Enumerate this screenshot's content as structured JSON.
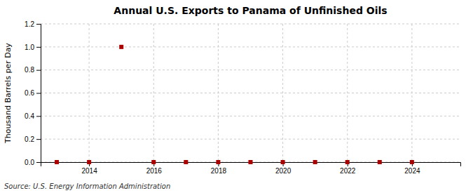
{
  "chart_data": {
    "type": "scatter",
    "title": "Annual U.S. Exports to Panama of Unfinished Oils",
    "ylabel": "Thousand Barrels per Day",
    "source": "Source: U.S. Energy Information Administration",
    "x": [
      2013,
      2014,
      2015,
      2016,
      2017,
      2018,
      2019,
      2020,
      2021,
      2022,
      2023,
      2024
    ],
    "values": [
      0.0,
      0.0,
      1.0,
      0.0,
      0.0,
      0.0,
      0.0,
      0.0,
      0.0,
      0.0,
      0.0,
      0.0
    ],
    "color": "#aa0000",
    "marker": "square",
    "xlim": [
      2012.5,
      2025.5
    ],
    "xticks": [
      2014,
      2016,
      2018,
      2020,
      2022,
      2024
    ],
    "ylim": [
      0.0,
      1.2
    ],
    "yticks": [
      {
        "value": 0.0,
        "label": "0.0"
      },
      0.2,
      0.4,
      0.6,
      0.8,
      {
        "value": 1.0,
        "label": "1.0"
      },
      1.2
    ],
    "grid": true
  }
}
